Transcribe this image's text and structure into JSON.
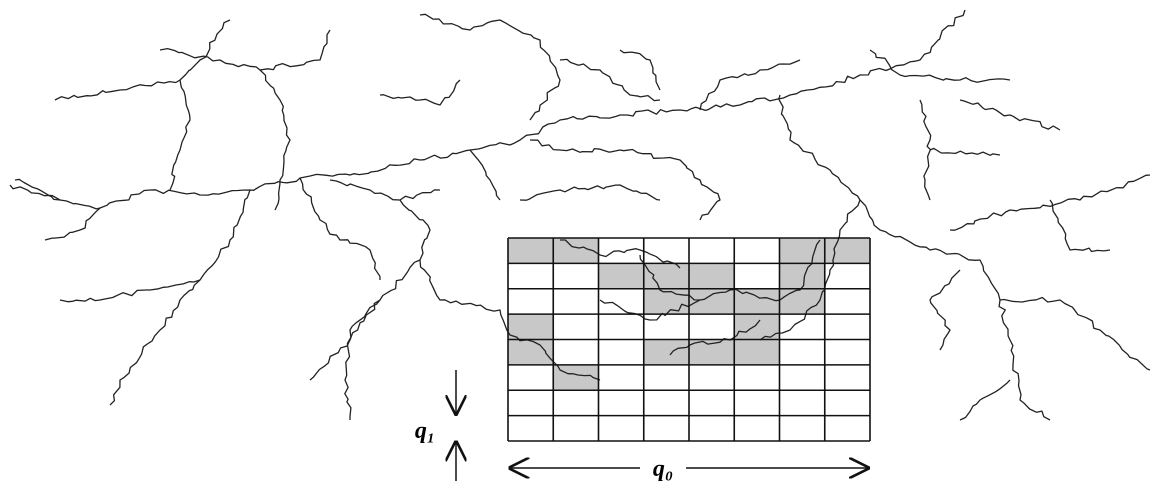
{
  "labels": {
    "vertical": "q₁",
    "horizontal": "q₀"
  }
}
